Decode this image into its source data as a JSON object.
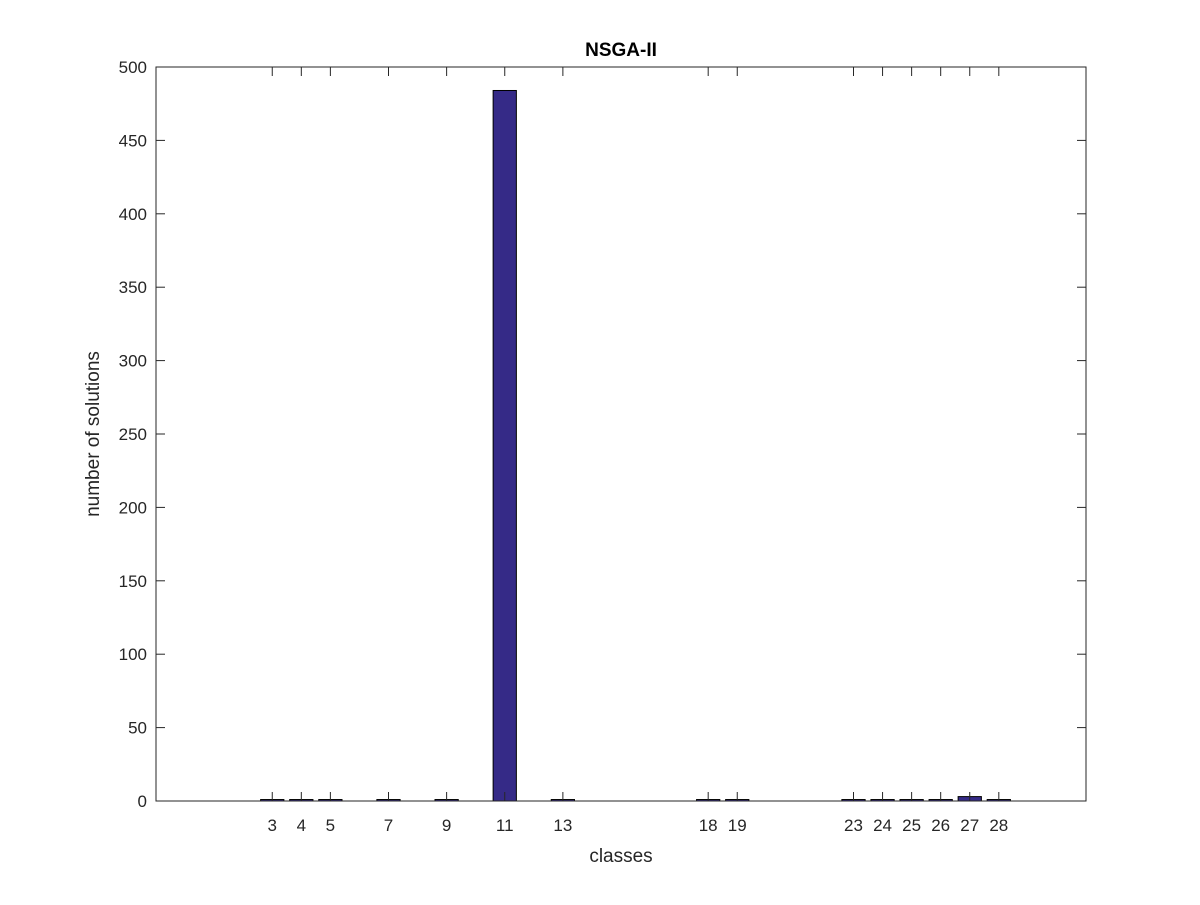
{
  "chart_data": {
    "type": "bar",
    "title": "NSGA-II",
    "xlabel": "classes",
    "ylabel": "number of solutions",
    "xlim": [
      -1,
      31
    ],
    "ylim": [
      0,
      500
    ],
    "yticks": [
      0,
      50,
      100,
      150,
      200,
      250,
      300,
      350,
      400,
      450,
      500
    ],
    "categories": [
      "3",
      "4",
      "5",
      "7",
      "9",
      "11",
      "13",
      "18",
      "19",
      "23",
      "24",
      "25",
      "26",
      "27",
      "28"
    ],
    "x": [
      3,
      4,
      5,
      7,
      9,
      11,
      13,
      18,
      19,
      23,
      24,
      25,
      26,
      27,
      28
    ],
    "values": [
      1,
      1,
      1,
      1,
      1,
      484,
      1,
      1,
      1,
      1,
      1,
      1,
      1,
      3,
      1
    ],
    "bar_color": "#352a87",
    "grid": false
  }
}
